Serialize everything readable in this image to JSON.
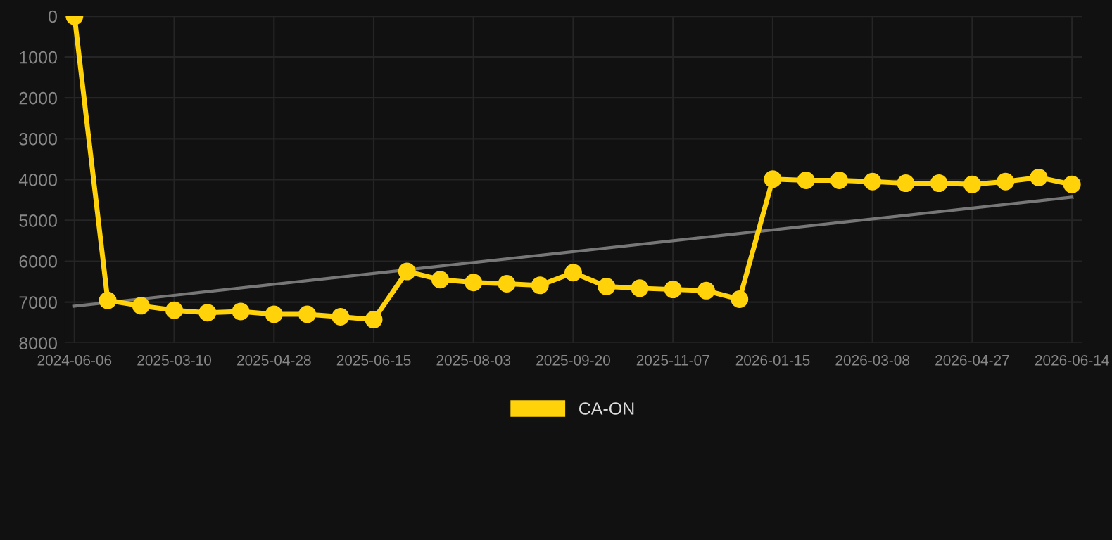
{
  "chart_data": {
    "type": "line",
    "categories": [
      "2024-06-06",
      null,
      null,
      "2025-03-10",
      null,
      null,
      "2025-04-28",
      null,
      null,
      "2025-06-15",
      null,
      null,
      "2025-08-03",
      null,
      null,
      "2025-09-20",
      null,
      null,
      "2025-11-07",
      null,
      null,
      "2026-01-15",
      null,
      null,
      "2026-03-08",
      null,
      null,
      "2026-04-27",
      null,
      null,
      "2026-06-14"
    ],
    "series": [
      {
        "name": "CA-ON",
        "color": "#ffd20a",
        "marker": "circle",
        "values": [
          0,
          6960,
          7090,
          7200,
          7260,
          7230,
          7300,
          7300,
          7360,
          7430,
          6250,
          6450,
          6520,
          6550,
          6590,
          6280,
          6620,
          6660,
          6690,
          6720,
          6930,
          3990,
          4020,
          4020,
          4050,
          4090,
          4090,
          4120,
          4050,
          3950,
          4120
        ]
      },
      {
        "type": "line",
        "color": "#777777",
        "marker": "none",
        "values": [
          7100,
          null,
          null,
          null,
          null,
          null,
          null,
          null,
          null,
          null,
          null,
          null,
          null,
          null,
          null,
          null,
          null,
          null,
          null,
          null,
          null,
          null,
          null,
          null,
          null,
          null,
          null,
          null,
          null,
          null,
          4430
        ]
      }
    ],
    "ylim": [
      8000,
      0
    ],
    "yticks": [
      0,
      1000,
      2000,
      3000,
      4000,
      5000,
      6000,
      7000,
      8000
    ],
    "grid": true,
    "legend": "bottom"
  }
}
